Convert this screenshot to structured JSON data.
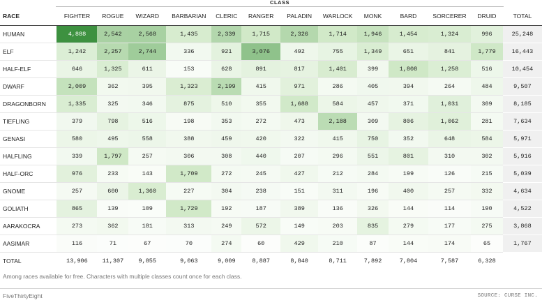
{
  "chart_data": {
    "type": "table",
    "spanner": "CLASS",
    "row_header": "RACE",
    "total_label": "TOTAL",
    "columns": [
      "FIGHTER",
      "ROGUE",
      "WIZARD",
      "BARBARIAN",
      "CLERIC",
      "RANGER",
      "PALADIN",
      "WARLOCK",
      "MONK",
      "BARD",
      "SORCERER",
      "DRUID"
    ],
    "rows": [
      {
        "race": "HUMAN",
        "values": [
          4888,
          2542,
          2568,
          1435,
          2339,
          1715,
          2326,
          1714,
          1946,
          1454,
          1324,
          996
        ],
        "total": "25,248"
      },
      {
        "race": "ELF",
        "values": [
          1242,
          2257,
          2744,
          336,
          921,
          3076,
          492,
          755,
          1349,
          651,
          841,
          1779
        ],
        "total": "16,443"
      },
      {
        "race": "HALF-ELF",
        "values": [
          646,
          1325,
          611,
          153,
          628,
          891,
          817,
          1401,
          399,
          1808,
          1258,
          516
        ],
        "total": "10,454"
      },
      {
        "race": "DWARF",
        "values": [
          2009,
          362,
          395,
          1323,
          2199,
          415,
          971,
          286,
          405,
          394,
          264,
          484
        ],
        "total": "9,507"
      },
      {
        "race": "DRAGONBORN",
        "values": [
          1335,
          325,
          346,
          875,
          510,
          355,
          1688,
          584,
          457,
          371,
          1031,
          309
        ],
        "total": "8,185"
      },
      {
        "race": "TIEFLING",
        "values": [
          379,
          798,
          516,
          198,
          353,
          272,
          473,
          2188,
          309,
          806,
          1062,
          281
        ],
        "total": "7,634"
      },
      {
        "race": "GENASI",
        "values": [
          580,
          495,
          558,
          388,
          459,
          420,
          322,
          415,
          750,
          352,
          648,
          584
        ],
        "total": "5,971"
      },
      {
        "race": "HALFLING",
        "values": [
          339,
          1797,
          257,
          306,
          308,
          440,
          207,
          296,
          551,
          801,
          310,
          302
        ],
        "total": "5,916"
      },
      {
        "race": "HALF-ORC",
        "values": [
          976,
          233,
          143,
          1709,
          272,
          245,
          427,
          212,
          284,
          199,
          126,
          215
        ],
        "total": "5,039"
      },
      {
        "race": "GNOME",
        "values": [
          257,
          600,
          1360,
          227,
          304,
          238,
          151,
          311,
          196,
          400,
          257,
          332
        ],
        "total": "4,634"
      },
      {
        "race": "GOLIATH",
        "values": [
          865,
          139,
          109,
          1729,
          192,
          187,
          389,
          136,
          326,
          144,
          114,
          190
        ],
        "total": "4,522"
      },
      {
        "race": "AARAKOCRA",
        "values": [
          273,
          362,
          181,
          313,
          249,
          572,
          149,
          203,
          835,
          279,
          177,
          275
        ],
        "total": "3,868"
      },
      {
        "race": "AASIMAR",
        "values": [
          116,
          71,
          67,
          70,
          274,
          60,
          429,
          210,
          87,
          144,
          174,
          65
        ],
        "total": "1,767"
      }
    ],
    "totals_row": {
      "label": "TOTAL",
      "values": [
        "13,906",
        "11,307",
        "9,855",
        "9,063",
        "9,009",
        "8,887",
        "8,840",
        "8,711",
        "7,892",
        "7,804",
        "7,587",
        "6,328"
      ]
    },
    "color_scale": {
      "low": "#ffffff",
      "mid": "#cfe8c6",
      "high": "#3d9140",
      "max_value": 4888
    }
  },
  "note": "Among races available for free. Characters with multiple classes count once for each class.",
  "brand": "FiveThirtyEight",
  "source": "SOURCE: CURSE INC."
}
